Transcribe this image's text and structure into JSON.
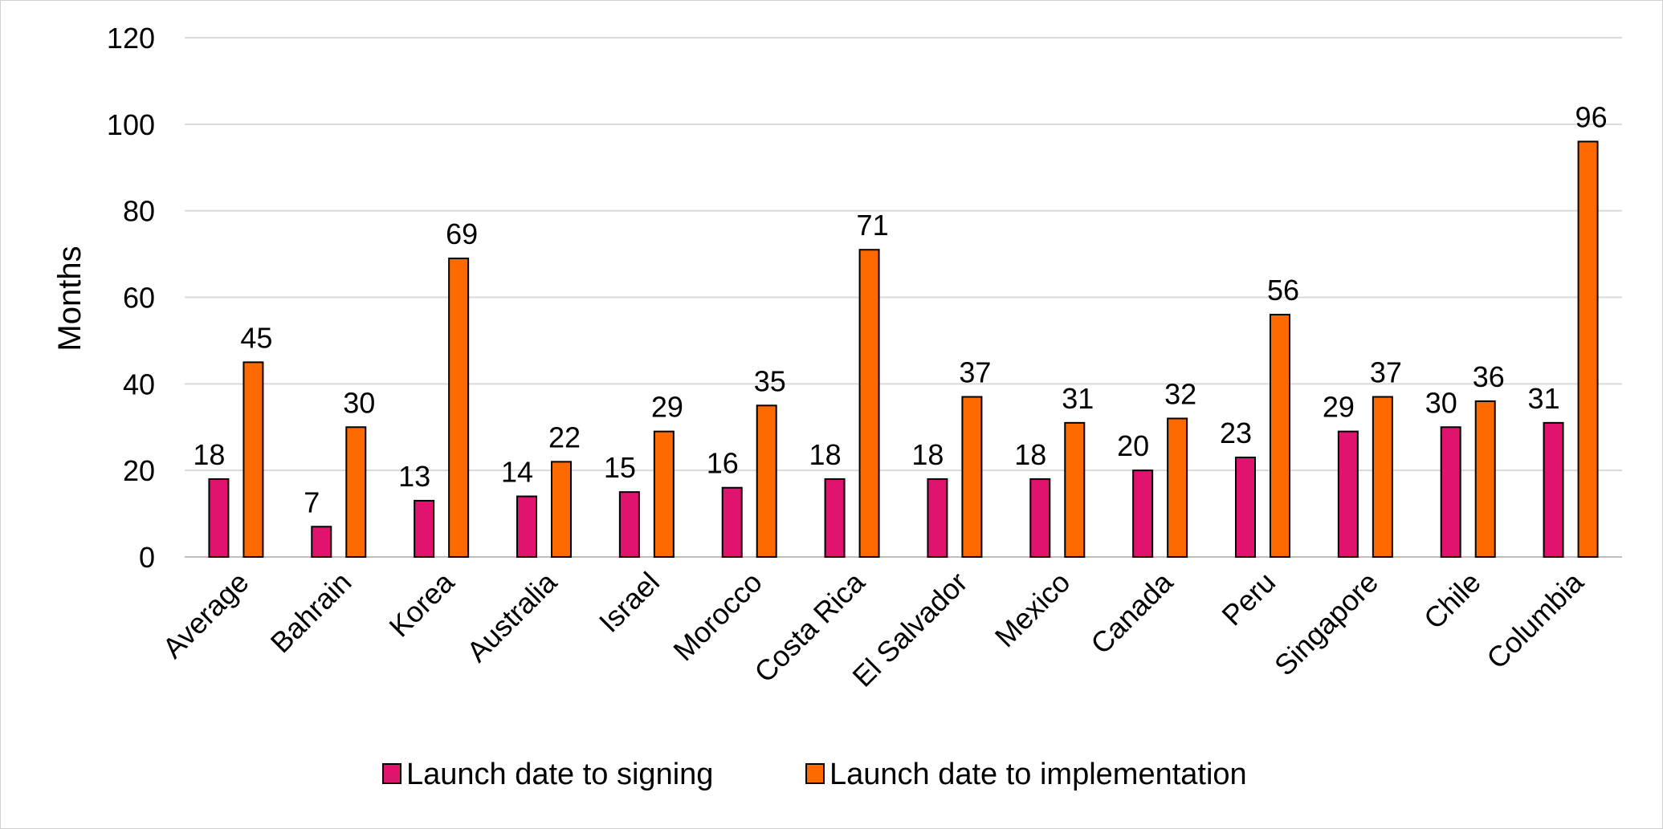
{
  "chart_data": {
    "type": "bar",
    "title": "",
    "xlabel": "",
    "ylabel": "Months",
    "ylim": [
      0,
      120
    ],
    "yticks": [
      0,
      20,
      40,
      60,
      80,
      100,
      120
    ],
    "grid": true,
    "legend_position": "bottom",
    "categories": [
      "Average",
      "Bahrain",
      "Korea",
      "Australia",
      "Israel",
      "Morocco",
      "Costa Rica",
      "El Salvador",
      "Mexico",
      "Canada",
      "Peru",
      "Singapore",
      "Chile",
      "Columbia"
    ],
    "series": [
      {
        "name": "Launch date to signing",
        "color": "#E0136F",
        "values": [
          18,
          7,
          13,
          14,
          15,
          16,
          18,
          18,
          18,
          20,
          23,
          29,
          30,
          31
        ]
      },
      {
        "name": "Launch date to implementation",
        "color": "#FF6A00",
        "values": [
          45,
          30,
          69,
          22,
          29,
          35,
          71,
          37,
          31,
          32,
          56,
          37,
          36,
          96
        ]
      }
    ]
  }
}
